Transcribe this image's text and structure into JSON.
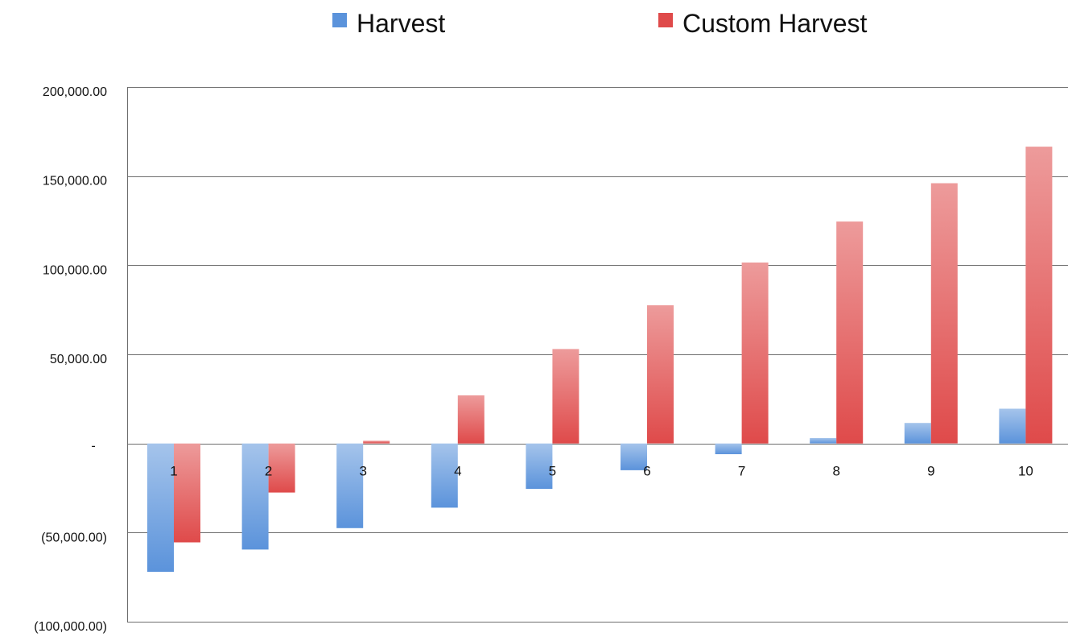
{
  "chart_data": {
    "type": "bar",
    "title": "",
    "xlabel": "",
    "ylabel": "",
    "categories": [
      "1",
      "2",
      "3",
      "4",
      "5",
      "6",
      "7",
      "8",
      "9",
      "10"
    ],
    "series": [
      {
        "name": "Harvest",
        "color": "#5b93db",
        "values": [
          -72000,
          -59500,
          -47500,
          -36000,
          -25500,
          -15000,
          -6000,
          3000,
          11500,
          19500
        ]
      },
      {
        "name": "Custom Harvest",
        "color": "#df4a4a",
        "values": [
          -55500,
          -27500,
          1500,
          27000,
          53000,
          77500,
          101500,
          124500,
          146000,
          166500
        ]
      }
    ],
    "ylim": [
      -100000,
      200000
    ],
    "yticks": [
      200000,
      150000,
      100000,
      50000,
      0,
      -50000,
      -100000
    ],
    "ytick_labels": [
      "200,000.00",
      "150,000.00",
      "100,000.00",
      "50,000.00",
      "-",
      "(50,000.00)",
      "(100,000.00)"
    ],
    "grid": true,
    "legend": "top-center"
  }
}
